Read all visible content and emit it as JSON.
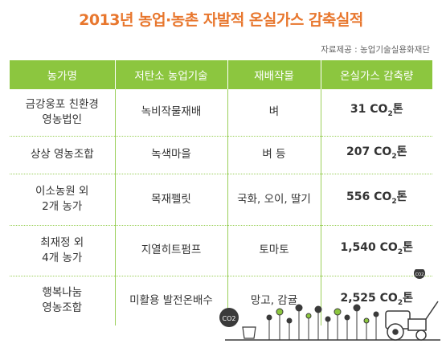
{
  "title": "2013년 농업·농촌 자발적 온실가스 감축실적",
  "source": "자료제공 : 농업기술실용화재단",
  "table": {
    "headers": [
      "농가명",
      "저탄소 농업기술",
      "재배작물",
      "온실가스 감축량"
    ],
    "rows": [
      {
        "farm": "금강웅포 친환경\n영농법인",
        "tech": "녹비작물재배",
        "crop": "벼",
        "amount": "31",
        "unit": "톤"
      },
      {
        "farm": "상상 영농조합",
        "tech": "녹색마을",
        "crop": "벼 등",
        "amount": "207",
        "unit": "톤"
      },
      {
        "farm": "이소농원 외\n2개 농가",
        "tech": "목재펠릿",
        "crop": "국화, 오이, 딸기",
        "amount": "556",
        "unit": "톤"
      },
      {
        "farm": "최재정 외\n4개 농가",
        "tech": "지열히트펌프",
        "crop": "토마토",
        "amount": "1,540",
        "unit": "톤"
      },
      {
        "farm": "행복나눔\n영농조합",
        "tech": "미활용 발전온배수",
        "crop": "망고, 감귤",
        "amount": "2,525",
        "unit": "톤"
      }
    ]
  },
  "co2_label": "CO2",
  "co2_main": "CO",
  "co2_sub": "2",
  "colors": {
    "header_bg": "#8cc63f",
    "title": "#e8772e",
    "grid": "#9bd05a"
  }
}
